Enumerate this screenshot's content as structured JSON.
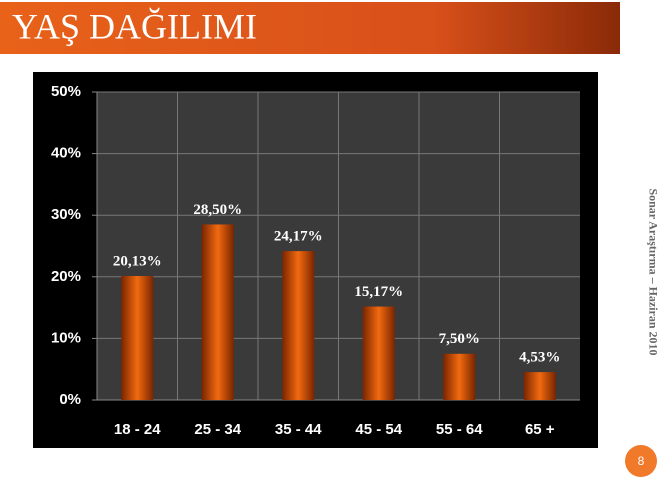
{
  "header": {
    "title": "YAŞ DAĞILIMI"
  },
  "side_note": "Sonar Araştırma – Haziran 2010",
  "page_number": "8",
  "chart_data": {
    "type": "bar",
    "categories": [
      "18 - 24",
      "25 - 34",
      "35 - 44",
      "45 - 54",
      "55 - 64",
      "65 +"
    ],
    "values": [
      20.13,
      28.5,
      24.17,
      15.17,
      7.5,
      4.53
    ],
    "value_labels": [
      "20,13%",
      "28,50%",
      "24,17%",
      "15,17%",
      "7,50%",
      "4,53%"
    ],
    "color": "#f26a10",
    "ylim": [
      0,
      50
    ],
    "yticks": [
      {
        "value": 0,
        "label": "0%"
      },
      {
        "value": 10,
        "label": "10%"
      },
      {
        "value": 20,
        "label": "20%"
      },
      {
        "value": 30,
        "label": "30%"
      },
      {
        "value": 40,
        "label": "40%"
      },
      {
        "value": 50,
        "label": "50%"
      }
    ],
    "grid": true
  }
}
